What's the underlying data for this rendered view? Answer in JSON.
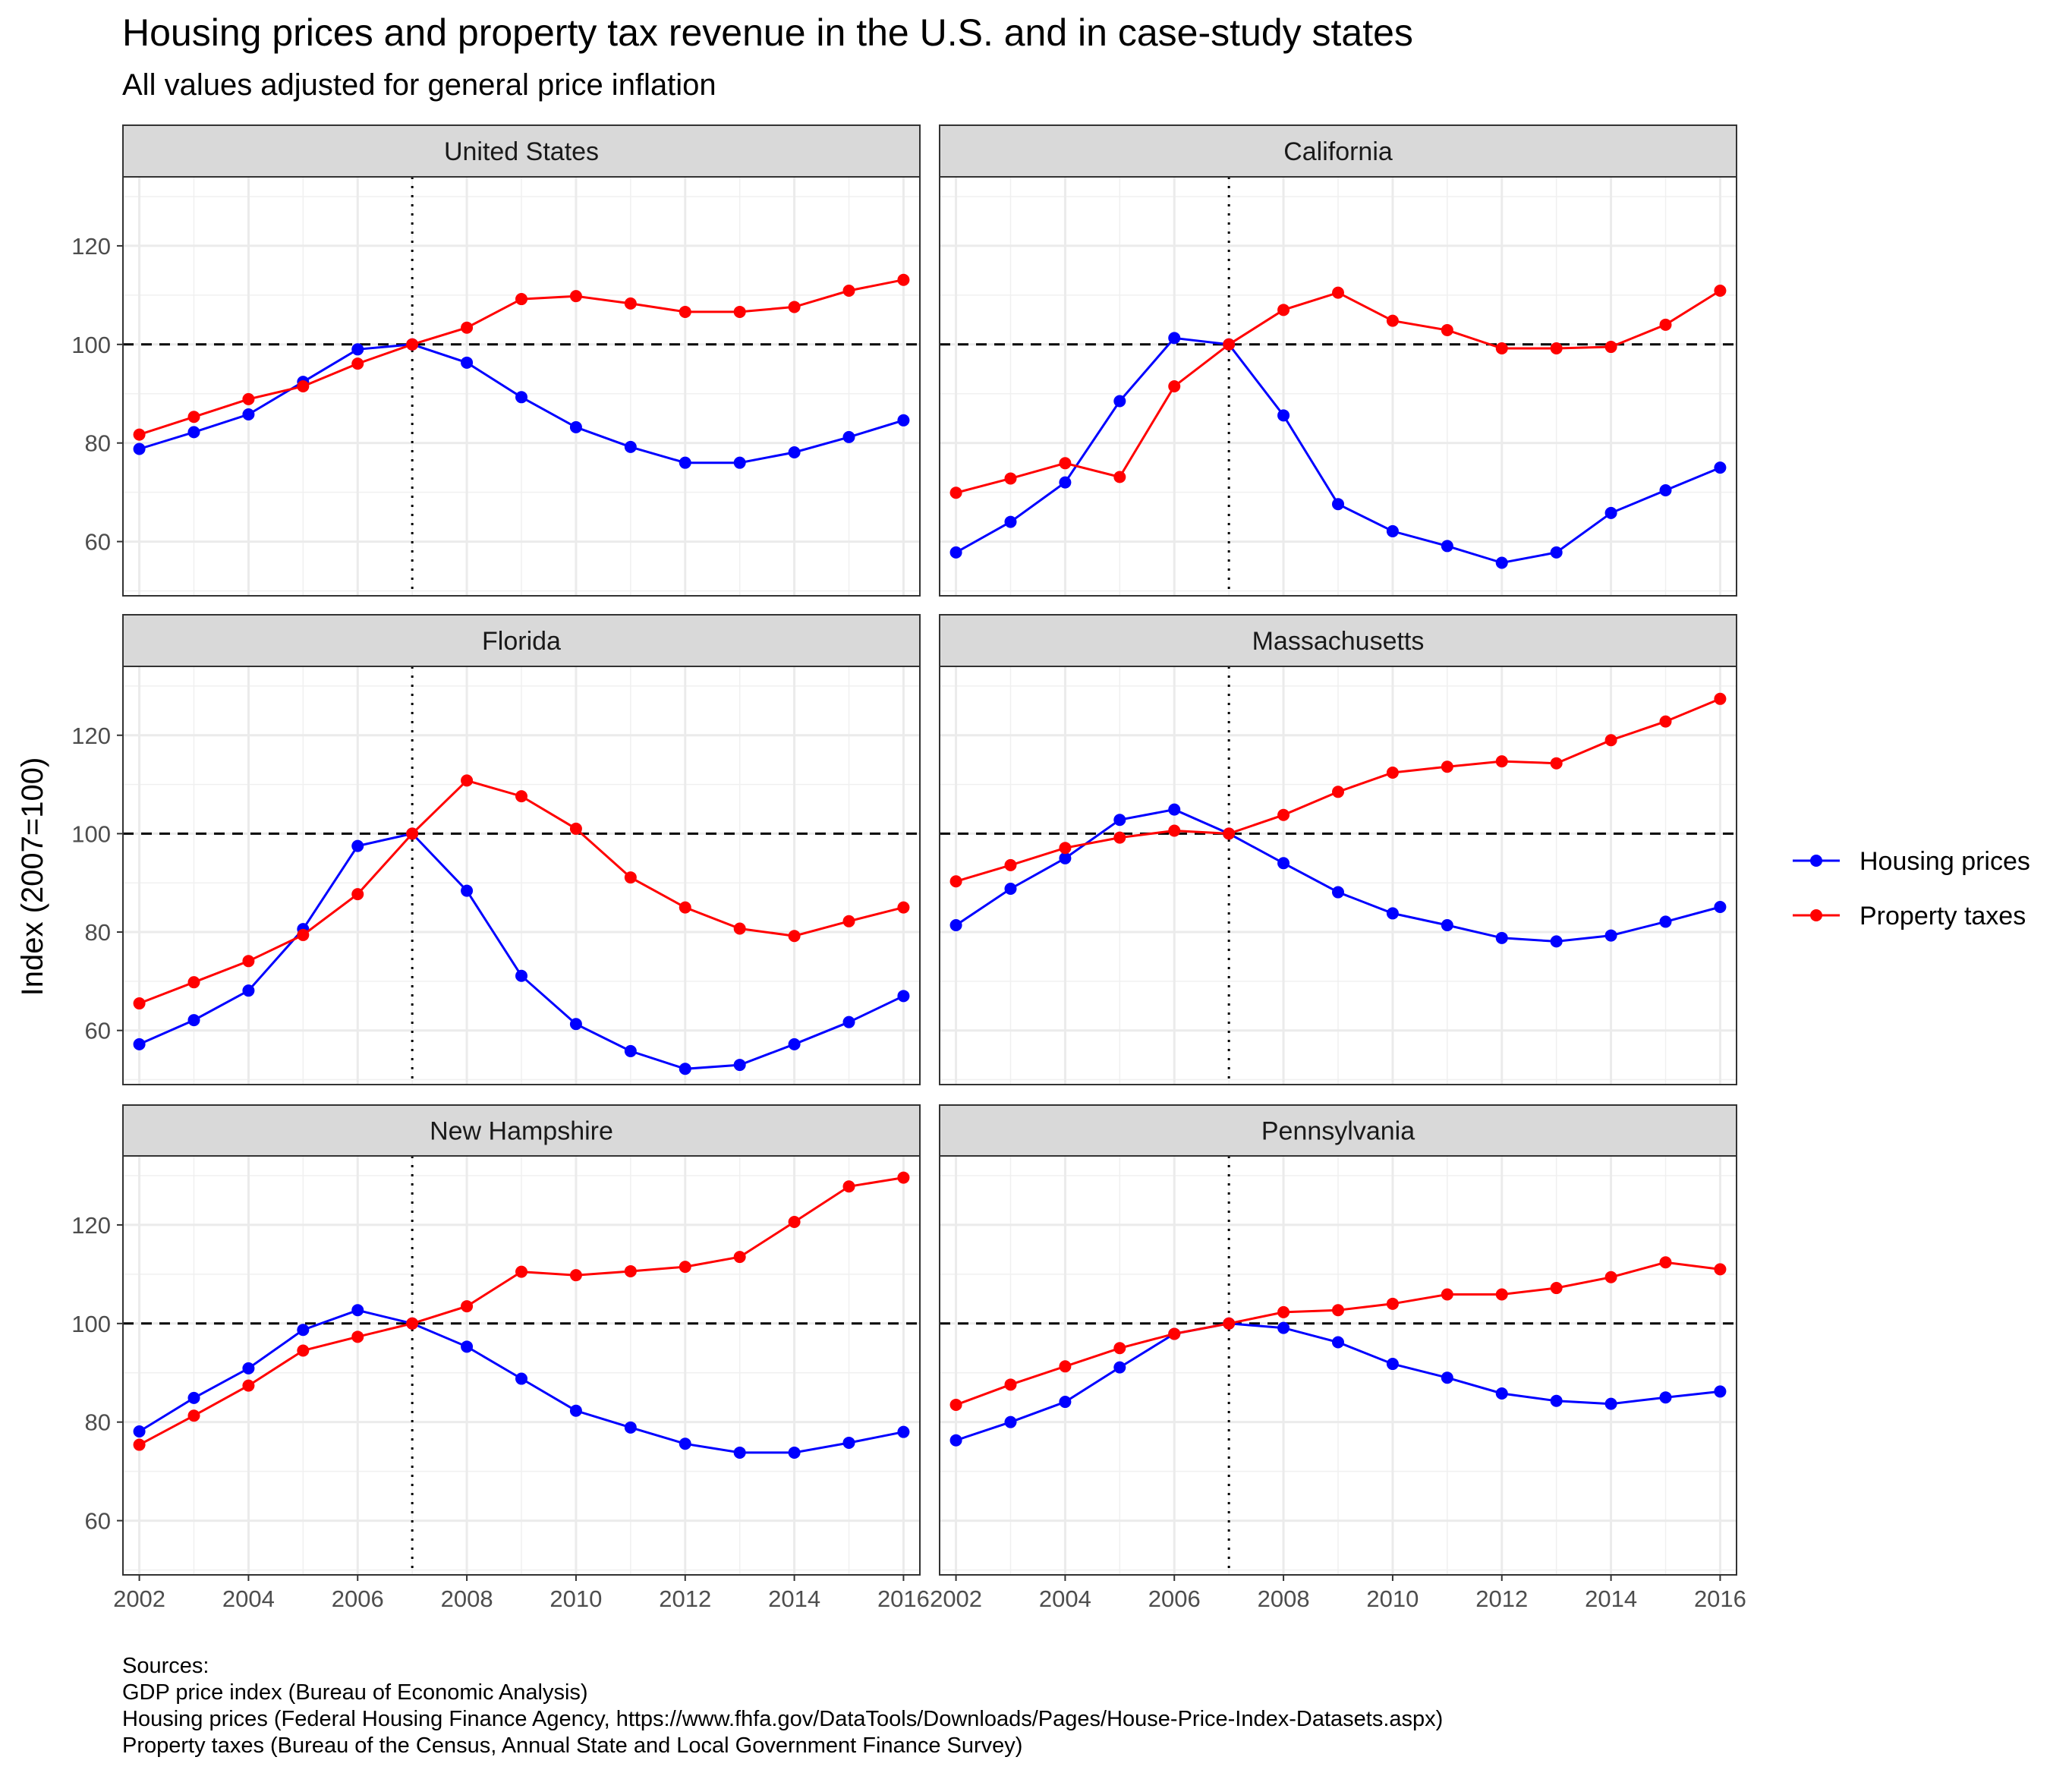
{
  "chart_data": {
    "type": "line",
    "title": "Housing prices and property tax revenue in the U.S. and in case-study states",
    "subtitle": "All values adjusted for general price inflation",
    "ylabel": "Index (2007=100)",
    "xlabel": "",
    "xlim": [
      2001.7,
      2016.3
    ],
    "ylim": [
      49,
      134
    ],
    "x_ticks": [
      2002,
      2004,
      2006,
      2008,
      2010,
      2012,
      2014,
      2016
    ],
    "y_ticks": [
      60,
      80,
      100,
      120
    ],
    "reference_lines": {
      "horizontal_dashed_y": 100,
      "vertical_dotted_x": 2007
    },
    "grid": true,
    "facet_layout": {
      "rows": 3,
      "cols": 2
    },
    "legend": {
      "position": "right",
      "entries": [
        {
          "label": "Housing prices",
          "color": "#0000FF"
        },
        {
          "label": "Property taxes",
          "color": "#FF0000"
        }
      ]
    },
    "x": [
      2002,
      2003,
      2004,
      2005,
      2006,
      2007,
      2008,
      2009,
      2010,
      2011,
      2012,
      2013,
      2014,
      2015,
      2016
    ],
    "panels": [
      {
        "title": "United States",
        "series": [
          {
            "name": "Housing prices",
            "values": [
              78.8,
              82.2,
              85.8,
              92.4,
              99.0,
              100,
              96.3,
              89.3,
              83.2,
              79.2,
              76.0,
              76.0,
              78.1,
              81.2,
              84.6
            ]
          },
          {
            "name": "Property taxes",
            "values": [
              81.7,
              85.3,
              88.9,
              91.5,
              96.1,
              100,
              103.4,
              109.2,
              109.8,
              108.3,
              106.6,
              106.6,
              107.6,
              110.9,
              113.1
            ]
          }
        ]
      },
      {
        "title": "California",
        "series": [
          {
            "name": "Housing prices",
            "values": [
              57.8,
              64.0,
              72.0,
              88.5,
              101.3,
              100,
              85.6,
              67.6,
              62.1,
              59.1,
              55.7,
              57.8,
              65.8,
              70.4,
              75.0
            ]
          },
          {
            "name": "Property taxes",
            "values": [
              69.9,
              72.8,
              75.9,
              73.1,
              91.5,
              100,
              107.0,
              110.5,
              104.8,
              102.9,
              99.2,
              99.2,
              99.5,
              104.0,
              110.9
            ]
          }
        ]
      },
      {
        "title": "Florida",
        "series": [
          {
            "name": "Housing prices",
            "values": [
              57.2,
              62.1,
              68.1,
              80.6,
              97.5,
              100,
              88.4,
              71.1,
              61.3,
              55.8,
              52.2,
              53.0,
              57.2,
              61.7,
              67.0
            ]
          },
          {
            "name": "Property taxes",
            "values": [
              65.5,
              69.8,
              74.1,
              79.4,
              87.7,
              100,
              110.8,
              107.6,
              101.0,
              91.1,
              85.0,
              80.7,
              79.2,
              82.2,
              85.0
            ]
          }
        ]
      },
      {
        "title": "Massachusetts",
        "series": [
          {
            "name": "Housing prices",
            "values": [
              81.4,
              88.8,
              95.0,
              102.8,
              104.9,
              100,
              94.0,
              88.1,
              83.8,
              81.4,
              78.8,
              78.1,
              79.3,
              82.1,
              85.1
            ]
          },
          {
            "name": "Property taxes",
            "values": [
              90.3,
              93.6,
              97.1,
              99.2,
              100.6,
              100,
              103.8,
              108.5,
              112.4,
              113.6,
              114.7,
              114.3,
              119.0,
              122.8,
              127.4
            ]
          }
        ]
      },
      {
        "title": "New Hampshire",
        "series": [
          {
            "name": "Housing prices",
            "values": [
              78.1,
              84.9,
              90.9,
              98.7,
              102.7,
              100,
              95.3,
              88.8,
              82.3,
              78.9,
              75.6,
              73.8,
              73.8,
              75.8,
              78.0
            ]
          },
          {
            "name": "Property taxes",
            "values": [
              75.4,
              81.3,
              87.4,
              94.5,
              97.3,
              100,
              103.5,
              110.5,
              109.8,
              110.6,
              111.5,
              113.5,
              120.6,
              127.8,
              129.6
            ]
          }
        ]
      },
      {
        "title": "Pennsylvania",
        "series": [
          {
            "name": "Housing prices",
            "values": [
              76.3,
              80.0,
              84.1,
              91.1,
              97.9,
              100,
              99.1,
              96.2,
              91.8,
              89.0,
              85.8,
              84.3,
              83.7,
              85.0,
              86.2
            ]
          },
          {
            "name": "Property taxes",
            "values": [
              83.5,
              87.6,
              91.3,
              95.0,
              97.9,
              100,
              102.3,
              102.7,
              104.0,
              105.9,
              105.9,
              107.2,
              109.4,
              112.4,
              111.0
            ]
          }
        ]
      }
    ]
  },
  "sources": {
    "heading": "Sources:",
    "lines": [
      "GDP price index (Bureau of Economic Analysis)",
      "Housing prices (Federal Housing Finance Agency, https://www.fhfa.gov/DataTools/Downloads/Pages/House-Price-Index-Datasets.aspx)",
      "Property taxes (Bureau of the Census, Annual State and Local Government Finance Survey)"
    ]
  }
}
